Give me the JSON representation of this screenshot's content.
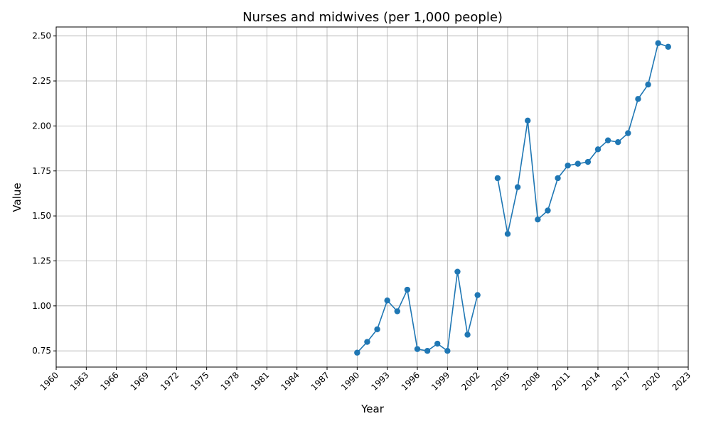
{
  "chart_data": {
    "type": "line",
    "title": "Nurses and midwives (per 1,000 people)",
    "xlabel": "Year",
    "ylabel": "Value",
    "xlim": [
      1960,
      2023
    ],
    "ylim": [
      0.66,
      2.55
    ],
    "x_ticks": [
      1960,
      1963,
      1966,
      1969,
      1972,
      1975,
      1978,
      1981,
      1984,
      1987,
      1990,
      1993,
      1996,
      1999,
      2002,
      2005,
      2008,
      2011,
      2014,
      2017,
      2020,
      2023
    ],
    "y_ticks": [
      0.75,
      1.0,
      1.25,
      1.5,
      1.75,
      2.0,
      2.25,
      2.5
    ],
    "grid": true,
    "series_color": "#1f77b4",
    "marker": "circle",
    "points": [
      {
        "x": 1990,
        "y": 0.74
      },
      {
        "x": 1991,
        "y": 0.8
      },
      {
        "x": 1992,
        "y": 0.87
      },
      {
        "x": 1993,
        "y": 1.03
      },
      {
        "x": 1994,
        "y": 0.97
      },
      {
        "x": 1995,
        "y": 1.09
      },
      {
        "x": 1996,
        "y": 0.76
      },
      {
        "x": 1997,
        "y": 0.75
      },
      {
        "x": 1998,
        "y": 0.79
      },
      {
        "x": 1999,
        "y": 0.75
      },
      {
        "x": 2000,
        "y": 1.19
      },
      {
        "x": 2001,
        "y": 0.84
      },
      {
        "x": 2002,
        "y": 1.06
      },
      {
        "x": 2003,
        "y": null
      },
      {
        "x": 2004,
        "y": 1.71
      },
      {
        "x": 2005,
        "y": 1.4
      },
      {
        "x": 2006,
        "y": 1.66
      },
      {
        "x": 2007,
        "y": 2.03
      },
      {
        "x": 2008,
        "y": 1.48
      },
      {
        "x": 2009,
        "y": 1.53
      },
      {
        "x": 2010,
        "y": 1.71
      },
      {
        "x": 2011,
        "y": 1.78
      },
      {
        "x": 2012,
        "y": 1.79
      },
      {
        "x": 2013,
        "y": 1.8
      },
      {
        "x": 2014,
        "y": 1.87
      },
      {
        "x": 2015,
        "y": 1.92
      },
      {
        "x": 2016,
        "y": 1.91
      },
      {
        "x": 2017,
        "y": 1.96
      },
      {
        "x": 2018,
        "y": 2.15
      },
      {
        "x": 2019,
        "y": 2.23
      },
      {
        "x": 2020,
        "y": 2.46
      },
      {
        "x": 2021,
        "y": 2.44
      }
    ]
  }
}
